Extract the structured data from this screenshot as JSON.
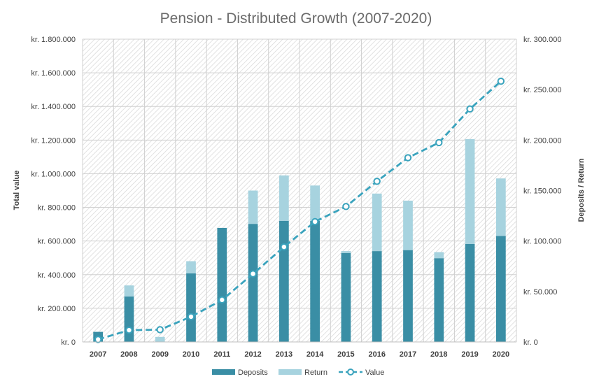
{
  "chart_data": {
    "type": "bar",
    "title": "Pension - Distributed Growth (2007-2020)",
    "categories": [
      "2007",
      "2008",
      "2009",
      "2010",
      "2011",
      "2012",
      "2013",
      "2014",
      "2015",
      "2016",
      "2017",
      "2018",
      "2019",
      "2020"
    ],
    "y_left": {
      "label": "Total value",
      "range": [
        0,
        1800000
      ],
      "ticks": [
        "kr. 0",
        "kr. 200.000",
        "kr. 400.000",
        "kr. 600.000",
        "kr. 800.000",
        "kr. 1.000.000",
        "kr. 1.200.000",
        "kr. 1.400.000",
        "kr. 1.600.000",
        "kr. 1.800.000"
      ]
    },
    "y_right": {
      "label": "Deposits / Return",
      "range": [
        0,
        300000
      ],
      "ticks": [
        "kr. 0",
        "kr. 50.000",
        "kr. 100.000",
        "kr. 150.000",
        "kr. 200.000",
        "kr. 250.000",
        "kr. 300.000"
      ]
    },
    "series": [
      {
        "name": "Deposits",
        "type": "bar",
        "axis": "right",
        "stacked": true,
        "color": "#3a8ea5",
        "values": [
          10000,
          45000,
          0,
          68000,
          113000,
          117000,
          120000,
          120000,
          88000,
          90000,
          91000,
          83000,
          97000,
          105000
        ]
      },
      {
        "name": "Return",
        "type": "bar",
        "axis": "right",
        "stacked": true,
        "color": "#a7d3df",
        "values": [
          0,
          11000,
          5000,
          12000,
          0,
          33000,
          45000,
          35000,
          2000,
          57000,
          49000,
          6000,
          104000,
          57000
        ]
      },
      {
        "name": "Value",
        "type": "line",
        "axis": "left",
        "color": "#3aa3bd",
        "dashed": true,
        "values": [
          15000,
          70000,
          73000,
          150000,
          250000,
          405000,
          565000,
          715000,
          805000,
          955000,
          1095000,
          1185000,
          1385000,
          1550000
        ]
      }
    ],
    "legend": {
      "position": "bottom",
      "items": [
        "Deposits",
        "Return",
        "Value"
      ]
    },
    "grid": true
  }
}
